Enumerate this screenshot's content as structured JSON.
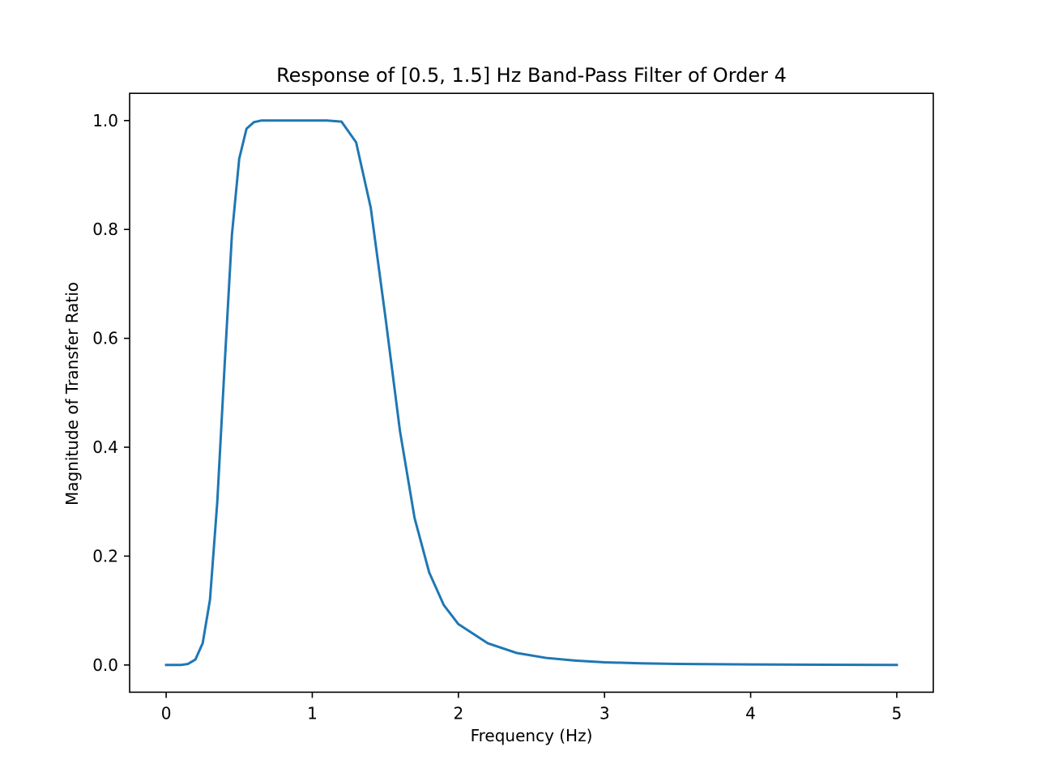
{
  "chart_data": {
    "type": "line",
    "title": "Response of [0.5, 1.5] Hz Band-Pass Filter of Order 4",
    "xlabel": "Frequency (Hz)",
    "ylabel": "Magnitude of Transfer Ratio",
    "xlim": [
      -0.25,
      5.25
    ],
    "ylim": [
      -0.05,
      1.05
    ],
    "x_ticks": [
      0,
      1,
      2,
      3,
      4,
      5
    ],
    "x_tick_labels": [
      "0",
      "1",
      "2",
      "3",
      "4",
      "5"
    ],
    "y_ticks": [
      0.0,
      0.2,
      0.4,
      0.6,
      0.8,
      1.0
    ],
    "y_tick_labels": [
      "0.0",
      "0.2",
      "0.4",
      "0.6",
      "0.8",
      "1.0"
    ],
    "grid": false,
    "series": [
      {
        "color": "#1f77b4",
        "x": [
          0,
          0.1,
          0.15,
          0.2,
          0.25,
          0.3,
          0.35,
          0.4,
          0.45,
          0.5,
          0.55,
          0.6,
          0.65,
          0.7,
          0.8,
          0.9,
          1.0,
          1.1,
          1.2,
          1.3,
          1.4,
          1.5,
          1.6,
          1.7,
          1.8,
          1.9,
          2.0,
          2.2,
          2.4,
          2.6,
          2.8,
          3.0,
          3.25,
          3.5,
          4.0,
          4.5,
          5.0
        ],
        "y": [
          0.0,
          0.0,
          0.002,
          0.01,
          0.04,
          0.12,
          0.3,
          0.55,
          0.79,
          0.93,
          0.985,
          0.997,
          1.0,
          1.0,
          1.0,
          1.0,
          1.0,
          1.0,
          0.998,
          0.96,
          0.84,
          0.64,
          0.43,
          0.27,
          0.17,
          0.11,
          0.075,
          0.04,
          0.022,
          0.013,
          0.008,
          0.005,
          0.003,
          0.002,
          0.001,
          0.0005,
          0.0
        ]
      }
    ]
  }
}
